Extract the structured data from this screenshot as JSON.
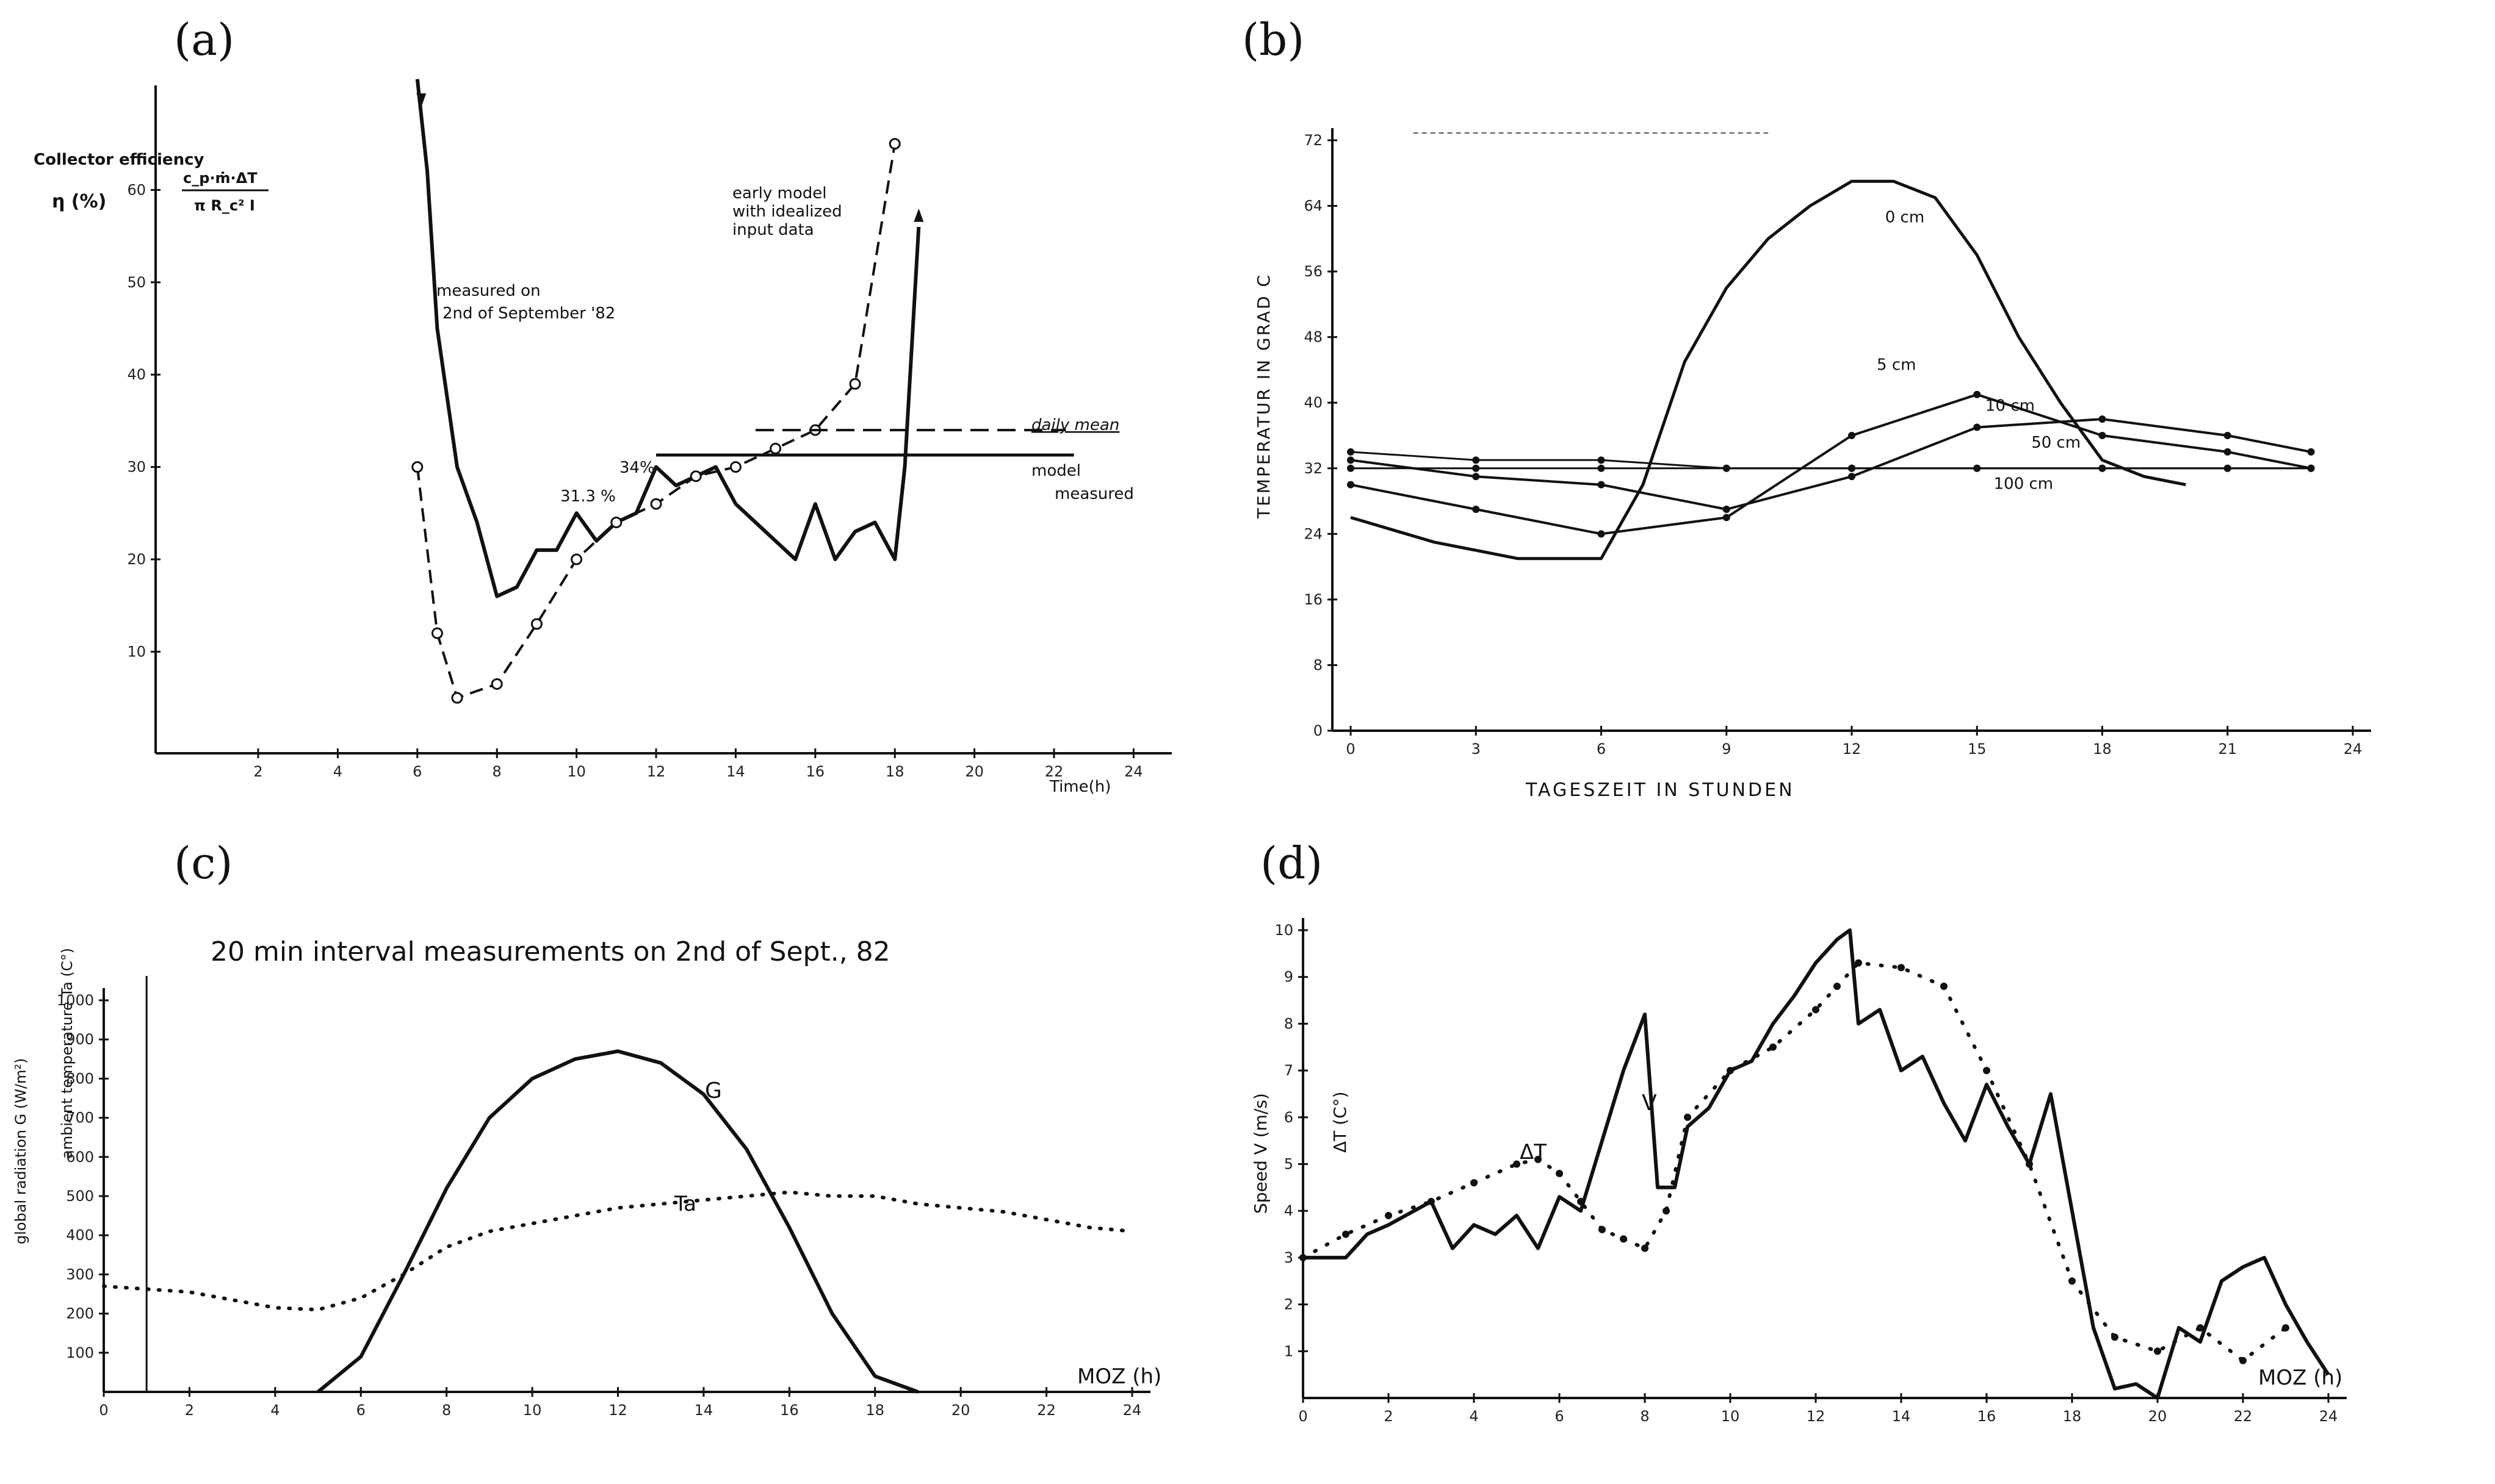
{
  "chart_data": [
    {
      "id": "a",
      "panel_label": "(a)",
      "type": "line",
      "ylabel": "Collector efficiency",
      "ylabel_symbol": "η (%)",
      "formula_top": "c_p·ṁ·ΔT",
      "formula_bottom": "π R_c² I",
      "xlabel": "Time(h)",
      "xlim": [
        -0.5,
        24.5
      ],
      "ylim": [
        -1,
        70
      ],
      "xticks": [
        2,
        4,
        6,
        8,
        10,
        12,
        14,
        16,
        18,
        20,
        22,
        24
      ],
      "yticks": [
        10,
        20,
        30,
        40,
        50,
        60
      ],
      "series": [
        {
          "name": "measured on 2nd of September '82",
          "style": "solid",
          "x": [
            6,
            6.25,
            6.5,
            7,
            7.5,
            8,
            8.5,
            9,
            9.5,
            10,
            10.5,
            11,
            11.5,
            12,
            12.5,
            13,
            13.5,
            14,
            14.5,
            15,
            15.5,
            16,
            16.5,
            17,
            17.5,
            18,
            18.25,
            18.6
          ],
          "y": [
            72,
            62,
            45,
            30,
            24,
            16,
            17,
            21,
            21,
            25,
            22,
            24,
            25,
            30,
            28,
            29,
            30,
            26,
            24,
            22,
            20,
            26,
            20,
            23,
            24,
            20,
            30,
            56
          ]
        },
        {
          "name": "early model with idealized input data",
          "style": "dashed",
          "x": [
            6,
            6.5,
            7,
            8,
            9,
            10,
            11,
            12,
            13,
            14,
            15,
            16,
            17,
            18
          ],
          "y": [
            30,
            12,
            5,
            6.5,
            13,
            20,
            24,
            26,
            29,
            30,
            32,
            34,
            39,
            65
          ]
        }
      ],
      "annotations": {
        "measured_note_1": "measured on",
        "measured_note_2": "2nd of September '82",
        "model_note_1": "early model",
        "model_note_2": "with idealized",
        "model_note_3": "input data",
        "daily_mean": "daily mean",
        "model_mean_label": "34%",
        "measured_mean_label": "31.3 %",
        "model_line_label": "model",
        "measured_line_label": "measured"
      },
      "daily_mean": {
        "model": 34,
        "measured": 31.3
      }
    },
    {
      "id": "b",
      "panel_label": "(b)",
      "type": "line",
      "ylabel": "TEMPERATUR IN GRAD C",
      "xlabel": "TAGESZEIT IN STUNDEN",
      "xlim": [
        0,
        24
      ],
      "ylim": [
        0,
        72
      ],
      "xticks": [
        0,
        3,
        6,
        9,
        12,
        15,
        18,
        21,
        24
      ],
      "yticks": [
        0,
        8,
        16,
        24,
        32,
        40,
        48,
        56,
        64,
        72
      ],
      "series": [
        {
          "name": "0 cm",
          "x": [
            0,
            2,
            4,
            6,
            7,
            8,
            9,
            10,
            11,
            12,
            13,
            14,
            15,
            16,
            17,
            18,
            19,
            20
          ],
          "y": [
            26,
            23,
            21,
            21,
            30,
            45,
            54,
            60,
            64,
            67,
            67,
            65,
            58,
            48,
            40,
            33,
            31,
            30
          ]
        },
        {
          "name": "5 cm",
          "x": [
            0,
            3,
            6,
            9,
            12,
            15,
            18,
            21,
            23
          ],
          "y": [
            30,
            27,
            24,
            26,
            36,
            41,
            36,
            34,
            32
          ]
        },
        {
          "name": "10 cm",
          "x": [
            0,
            3,
            6,
            9,
            12,
            15,
            18,
            21,
            23
          ],
          "y": [
            33,
            31,
            30,
            27,
            31,
            37,
            38,
            36,
            34
          ]
        },
        {
          "name": "50 cm",
          "x": [
            0,
            3,
            6,
            9,
            12,
            15,
            18,
            21,
            23
          ],
          "y": [
            34,
            33,
            33,
            32,
            32,
            32,
            32,
            32,
            32
          ]
        },
        {
          "name": "100 cm",
          "x": [
            0,
            3,
            6,
            9,
            12,
            15,
            18,
            21,
            23
          ],
          "y": [
            32,
            32,
            32,
            32,
            32,
            32,
            32,
            32,
            32
          ]
        }
      ]
    },
    {
      "id": "c",
      "panel_label": "(c)",
      "type": "line",
      "title": "20 min interval measurements on 2nd of Sept., 82",
      "ylabel_left": "global radiation G (W/m²)",
      "ylabel_right": "ambient temperature Ta (C°)",
      "xlabel": "MOZ (h)",
      "xlim": [
        0,
        24
      ],
      "ylim": [
        0,
        1000
      ],
      "xticks": [
        0,
        2,
        4,
        6,
        8,
        10,
        12,
        14,
        16,
        18,
        20,
        22,
        24
      ],
      "yticks": [
        100,
        200,
        300,
        400,
        500,
        600,
        700,
        800,
        900,
        1000
      ],
      "series": [
        {
          "name": "G",
          "style": "solid",
          "x": [
            5,
            6,
            7,
            8,
            9,
            10,
            11,
            12,
            13,
            14,
            15,
            16,
            17,
            18,
            19
          ],
          "y": [
            0,
            90,
            300,
            520,
            700,
            800,
            850,
            870,
            840,
            760,
            620,
            420,
            200,
            40,
            0
          ]
        },
        {
          "name": "Ta",
          "style": "dotted",
          "x": [
            0,
            2,
            4,
            5,
            6,
            7,
            8,
            9,
            10,
            11,
            12,
            13,
            14,
            15,
            16,
            17,
            18,
            19,
            20,
            21,
            22,
            23,
            24
          ],
          "y": [
            270,
            255,
            215,
            210,
            240,
            300,
            370,
            410,
            430,
            450,
            470,
            480,
            490,
            500,
            510,
            500,
            500,
            480,
            470,
            460,
            440,
            420,
            410
          ]
        }
      ],
      "series_labels": {
        "G": "G",
        "Ta": "Ta"
      }
    },
    {
      "id": "d",
      "panel_label": "(d)",
      "type": "line",
      "ylabel": "Speed V (m/s)",
      "ylabel_2": "ΔT (C°)",
      "xlabel": "MOZ (h)",
      "xlim": [
        0,
        24
      ],
      "ylim": [
        0,
        10
      ],
      "xticks": [
        0,
        2,
        4,
        6,
        8,
        10,
        12,
        14,
        16,
        18,
        20,
        22,
        24
      ],
      "yticks": [
        1,
        2,
        3,
        4,
        5,
        6,
        7,
        8,
        9,
        10
      ],
      "series": [
        {
          "name": "V",
          "style": "solid",
          "x": [
            0,
            1,
            1.5,
            2,
            3,
            3.5,
            4,
            4.5,
            5,
            5.5,
            6,
            6.5,
            7,
            7.5,
            8,
            8.3,
            8.7,
            9,
            9.5,
            10,
            10.5,
            11,
            11.5,
            12,
            12.5,
            12.8,
            13,
            13.5,
            14,
            14.5,
            15,
            15.5,
            16,
            16.5,
            17,
            17.5,
            18,
            18.5,
            19,
            19.5,
            20,
            20.5,
            21,
            21.5,
            22,
            22.5,
            23,
            23.5,
            24
          ],
          "y": [
            3,
            3,
            3.5,
            3.7,
            4.2,
            3.2,
            3.7,
            3.5,
            3.9,
            3.2,
            4.3,
            4,
            5.5,
            7,
            8.2,
            4.5,
            4.5,
            5.8,
            6.2,
            7,
            7.2,
            8,
            8.6,
            9.3,
            9.8,
            10,
            8,
            8.3,
            7,
            7.3,
            6.3,
            5.5,
            6.7,
            5.8,
            5,
            6.5,
            4,
            1.5,
            0.2,
            0.3,
            0,
            1.5,
            1.2,
            2.5,
            2.8,
            3,
            2,
            1.2,
            0.5
          ]
        },
        {
          "name": "ΔT",
          "style": "dotted",
          "x": [
            0,
            1,
            2,
            3,
            4,
            5,
            5.5,
            6,
            6.5,
            7,
            7.5,
            8,
            8.5,
            9,
            10,
            11,
            12,
            12.5,
            13,
            14,
            15,
            16,
            17,
            18,
            19,
            20,
            21,
            22,
            23
          ],
          "y": [
            3,
            3.5,
            3.9,
            4.2,
            4.6,
            5,
            5.1,
            4.8,
            4.2,
            3.6,
            3.4,
            3.2,
            4,
            6,
            7,
            7.5,
            8.3,
            8.8,
            9.3,
            9.2,
            8.8,
            7,
            5,
            2.5,
            1.3,
            1,
            1.5,
            0.8,
            1.5
          ]
        }
      ],
      "series_labels": {
        "V": "V",
        "dT": "ΔT"
      }
    }
  ]
}
